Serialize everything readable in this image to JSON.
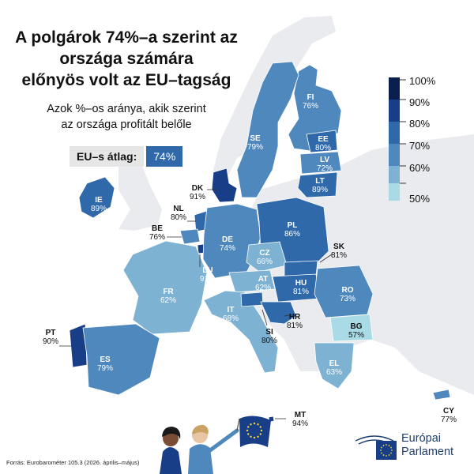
{
  "title": {
    "lines": [
      "A polgárok 74%–a szerint az",
      "országa számára",
      "előnyös volt az EU–tagság"
    ]
  },
  "subtitle": {
    "lines": [
      "Azok %–os aránya, akik szerint",
      "az országa profitált belőle"
    ]
  },
  "average": {
    "label": "EU–s átlag:",
    "value": "74%"
  },
  "legend": {
    "labels": [
      "100%",
      "90%",
      "80%",
      "70%",
      "60%",
      "50%"
    ],
    "colors": [
      "#0b1f4f",
      "#173e86",
      "#2f69aa",
      "#4f88bd",
      "#7eb2d3",
      "#a9dbe6"
    ]
  },
  "countries": [
    {
      "code": "FI",
      "value": "76%",
      "pct": 76
    },
    {
      "code": "SE",
      "value": "79%",
      "pct": 79
    },
    {
      "code": "EE",
      "value": "80%",
      "pct": 80
    },
    {
      "code": "LV",
      "value": "72%",
      "pct": 72
    },
    {
      "code": "LT",
      "value": "89%",
      "pct": 89
    },
    {
      "code": "DK",
      "value": "91%",
      "pct": 91
    },
    {
      "code": "IE",
      "value": "89%",
      "pct": 89
    },
    {
      "code": "NL",
      "value": "80%",
      "pct": 80
    },
    {
      "code": "BE",
      "value": "76%",
      "pct": 76
    },
    {
      "code": "DE",
      "value": "74%",
      "pct": 74
    },
    {
      "code": "PL",
      "value": "86%",
      "pct": 86
    },
    {
      "code": "LU",
      "value": "91%",
      "pct": 91
    },
    {
      "code": "CZ",
      "value": "66%",
      "pct": 66
    },
    {
      "code": "SK",
      "value": "81%",
      "pct": 81
    },
    {
      "code": "AT",
      "value": "62%",
      "pct": 62
    },
    {
      "code": "HU",
      "value": "81%",
      "pct": 81
    },
    {
      "code": "RO",
      "value": "73%",
      "pct": 73
    },
    {
      "code": "FR",
      "value": "62%",
      "pct": 62
    },
    {
      "code": "IT",
      "value": "68%",
      "pct": 68
    },
    {
      "code": "HR",
      "value": "81%",
      "pct": 81
    },
    {
      "code": "SI",
      "value": "80%",
      "pct": 80
    },
    {
      "code": "BG",
      "value": "57%",
      "pct": 57
    },
    {
      "code": "PT",
      "value": "90%",
      "pct": 90
    },
    {
      "code": "ES",
      "value": "79%",
      "pct": 79
    },
    {
      "code": "EL",
      "value": "63%",
      "pct": 63
    },
    {
      "code": "MT",
      "value": "94%",
      "pct": 94
    },
    {
      "code": "CY",
      "value": "77%",
      "pct": 77
    }
  ],
  "source": "Forrás: Eurobarométer 105.3 (2026. április–május)",
  "brand": {
    "lines": [
      "Európai",
      "Parlament"
    ]
  },
  "icons": [
    "eu-flag-icon",
    "european-parliament-logo-icon",
    "people-illustration-icon"
  ]
}
